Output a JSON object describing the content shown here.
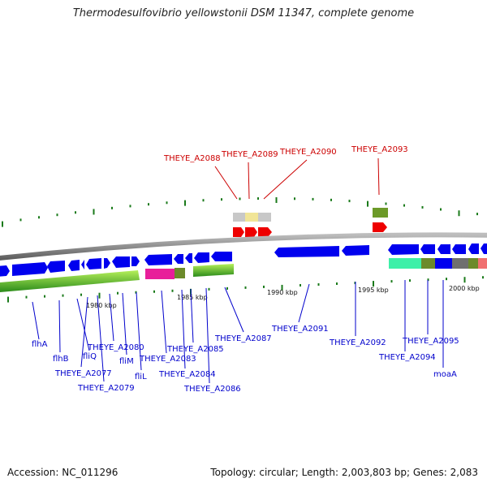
{
  "title": "Thermodesulfovibrio yellowstonii DSM 11347, complete genome",
  "footer": {
    "accession": "Accession: NC_011296",
    "summary": "Topology: circular; Length: 2,003,803 bp; Genes: 2,083"
  },
  "scale_labels": [
    "1980 kbp",
    "1985 kbp",
    "1990 kbp",
    "1995 kbp",
    "2000 kbp"
  ],
  "genes_top": [
    "THEYE_A2088",
    "THEYE_A2089",
    "THEYE_A2090",
    "THEYE_A2093"
  ],
  "genes_bottom": [
    "flhA",
    "flhB",
    "fliQ",
    "THEYE_A2077",
    "THEYE_A2079",
    "THEYE_A2080",
    "fliM",
    "fliL",
    "THEYE_A2083",
    "THEYE_A2084",
    "THEYE_A2085",
    "THEYE_A2086",
    "THEYE_A2087",
    "THEYE_A2091",
    "THEYE_A2092",
    "THEYE_A2094",
    "THEYE_A2095",
    "moaA"
  ],
  "colors": {
    "forward_gene": "#0000ee",
    "highlight_gene": "#ee0000",
    "backbone": "#888888",
    "tick": "#1a7a1a",
    "label_blue": "#0000cc",
    "label_red": "#cc0000"
  }
}
